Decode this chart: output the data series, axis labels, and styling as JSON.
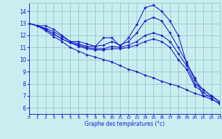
{
  "xlabel": "Graphe des températures (°c)",
  "background_color": "#c8eef0",
  "line_color": "#1c1ccc",
  "grid_color": "#a0c8d0",
  "xlim": [
    0,
    23
  ],
  "ylim": [
    5.5,
    14.7
  ],
  "yticks": [
    6,
    7,
    8,
    9,
    10,
    11,
    12,
    13,
    14
  ],
  "xticks": [
    0,
    1,
    2,
    3,
    4,
    5,
    6,
    7,
    8,
    9,
    10,
    11,
    12,
    13,
    14,
    15,
    16,
    17,
    18,
    19,
    20,
    21,
    22,
    23
  ],
  "series": [
    {
      "x": [
        0,
        1,
        2,
        3,
        4,
        5,
        6,
        7,
        8,
        9,
        10,
        11,
        12,
        13,
        14,
        15,
        16,
        17,
        18,
        19,
        20,
        21,
        22,
        23
      ],
      "y": [
        13.0,
        12.8,
        12.8,
        12.5,
        12.0,
        11.5,
        11.5,
        11.3,
        11.1,
        11.8,
        11.8,
        11.1,
        11.8,
        12.9,
        14.3,
        14.5,
        14.0,
        13.2,
        12.0,
        9.7,
        8.5,
        7.0,
        7.0,
        6.5
      ]
    },
    {
      "x": [
        0,
        1,
        2,
        3,
        4,
        5,
        6,
        7,
        8,
        9,
        10,
        11,
        12,
        13,
        14,
        15,
        16,
        17,
        18,
        19,
        20,
        21,
        22,
        23
      ],
      "y": [
        13.0,
        12.8,
        12.6,
        12.3,
        11.9,
        11.5,
        11.3,
        11.1,
        11.1,
        11.2,
        11.5,
        11.2,
        11.5,
        12.2,
        13.2,
        13.5,
        13.2,
        12.2,
        11.0,
        9.8,
        8.3,
        7.5,
        7.0,
        6.5
      ]
    },
    {
      "x": [
        0,
        1,
        2,
        3,
        4,
        5,
        6,
        7,
        8,
        9,
        10,
        11,
        12,
        13,
        14,
        15,
        16,
        17,
        18,
        19,
        20,
        21,
        22,
        23
      ],
      "y": [
        13.0,
        12.8,
        12.5,
        12.1,
        11.7,
        11.4,
        11.2,
        11.0,
        10.9,
        10.9,
        11.1,
        11.0,
        11.2,
        11.5,
        12.0,
        12.2,
        12.0,
        11.5,
        10.5,
        9.5,
        8.0,
        7.5,
        7.0,
        6.5
      ]
    },
    {
      "x": [
        0,
        1,
        2,
        3,
        4,
        5,
        6,
        7,
        8,
        9,
        10,
        11,
        12,
        13,
        14,
        15,
        16,
        17,
        18,
        19,
        20,
        21,
        22,
        23
      ],
      "y": [
        13.0,
        12.8,
        12.5,
        12.1,
        11.7,
        11.4,
        11.1,
        10.9,
        10.8,
        10.8,
        10.9,
        10.9,
        11.0,
        11.2,
        11.5,
        11.7,
        11.5,
        11.0,
        10.0,
        9.2,
        7.8,
        7.3,
        6.8,
        6.3
      ]
    },
    {
      "x": [
        0,
        1,
        2,
        3,
        4,
        5,
        6,
        7,
        8,
        9,
        10,
        11,
        12,
        13,
        14,
        15,
        16,
        17,
        18,
        19,
        20,
        21,
        22,
        23
      ],
      "y": [
        13.0,
        12.8,
        12.4,
        11.9,
        11.5,
        11.0,
        10.7,
        10.4,
        10.2,
        10.0,
        9.8,
        9.5,
        9.2,
        9.0,
        8.7,
        8.5,
        8.2,
        8.0,
        7.8,
        7.5,
        7.2,
        7.0,
        6.7,
        6.4
      ]
    }
  ]
}
